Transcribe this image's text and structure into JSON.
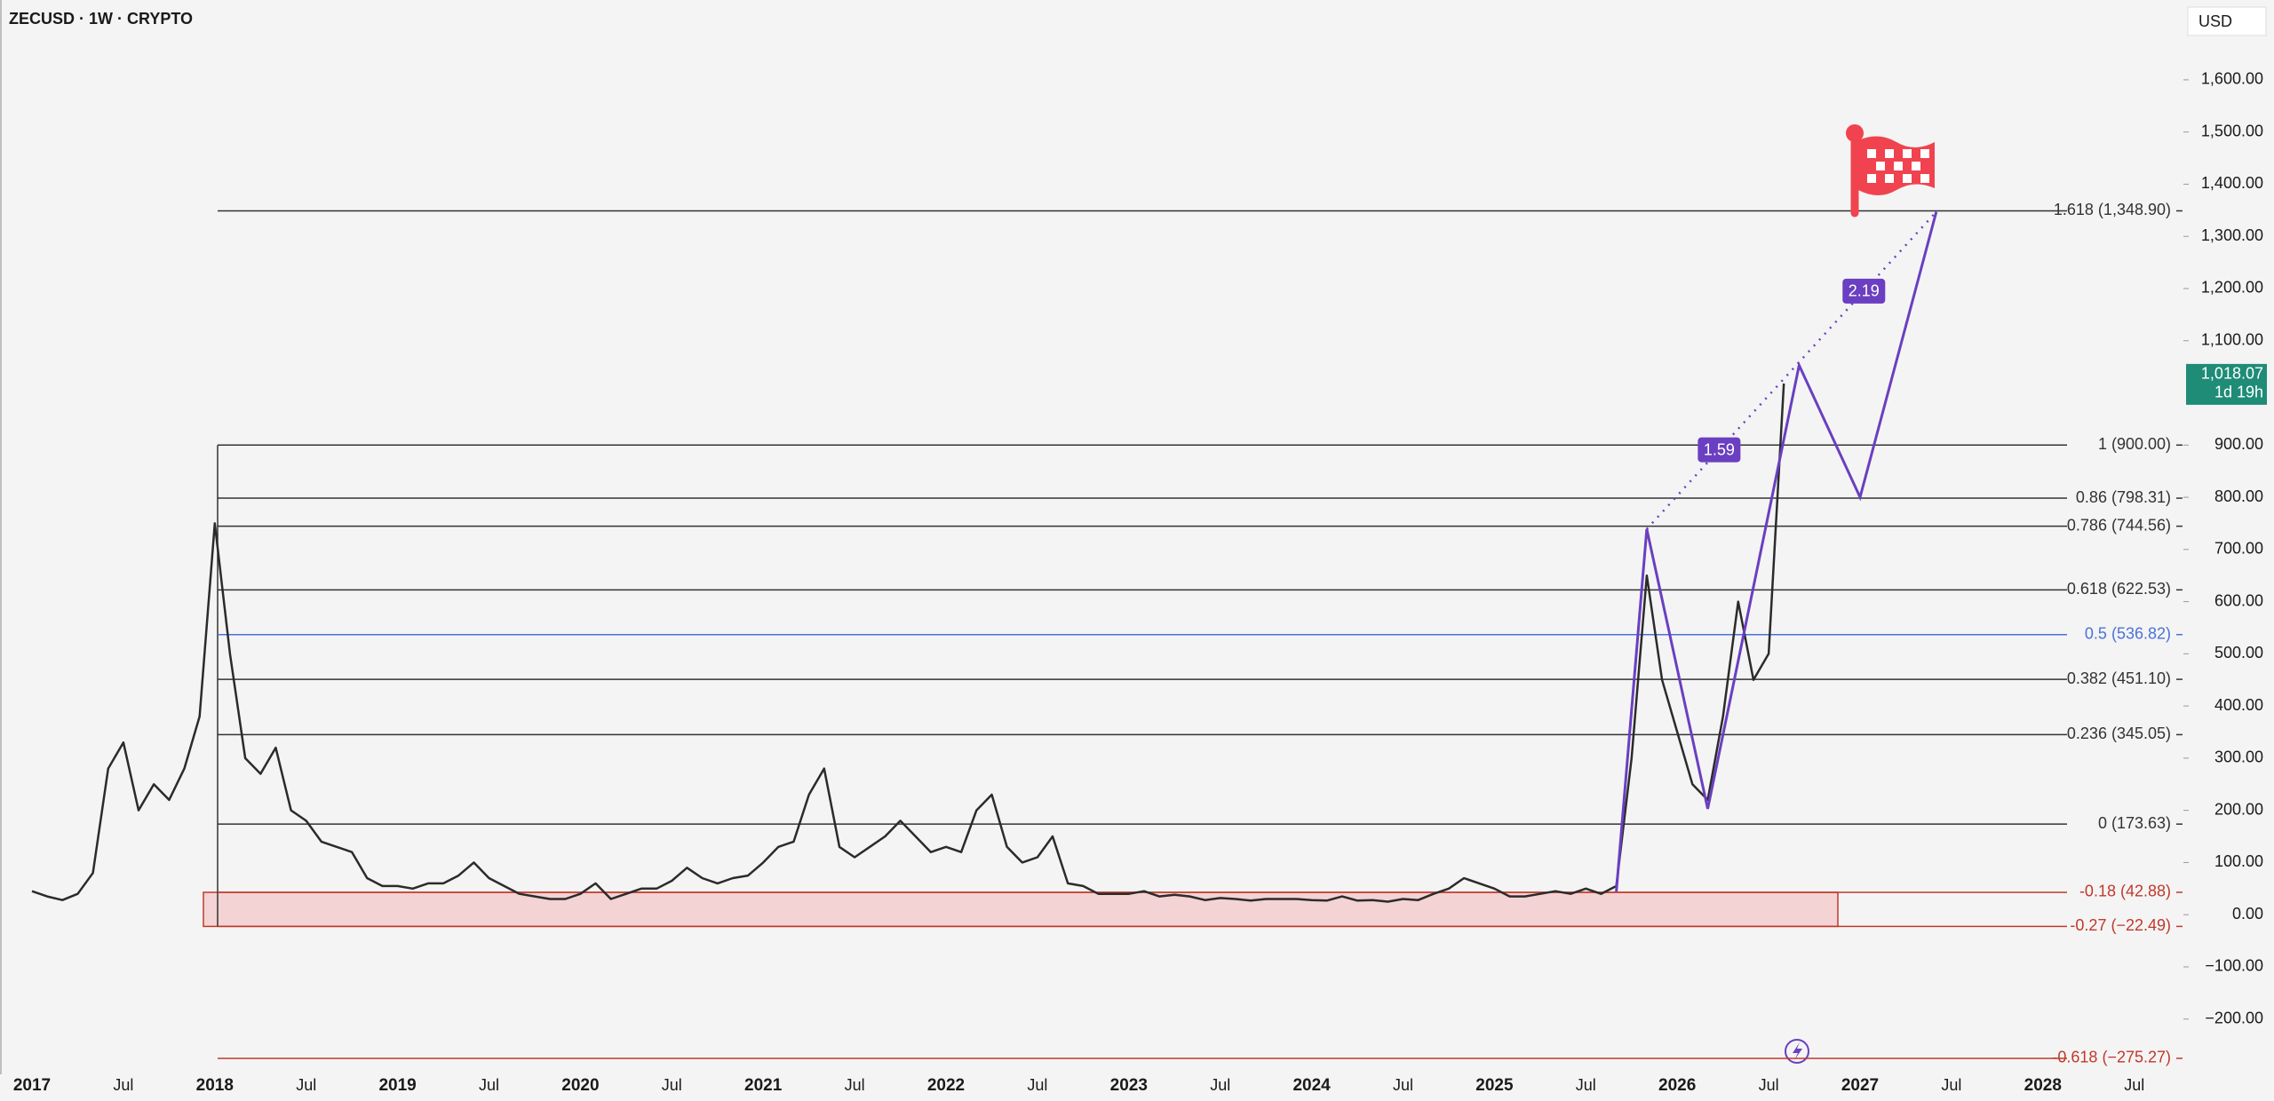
{
  "chart_data": {
    "type": "line",
    "title": "ZECUSD · 1W · CRYPTO",
    "currency": "USD",
    "x": [
      "2017-01",
      "2017-02",
      "2017-03",
      "2017-04",
      "2017-05",
      "2017-06",
      "2017-07",
      "2017-08",
      "2017-09",
      "2017-10",
      "2017-11",
      "2017-12",
      "2018-01",
      "2018-02",
      "2018-03",
      "2018-04",
      "2018-05",
      "2018-06",
      "2018-07",
      "2018-08",
      "2018-09",
      "2018-10",
      "2018-11",
      "2018-12",
      "2019-01",
      "2019-02",
      "2019-03",
      "2019-04",
      "2019-05",
      "2019-06",
      "2019-07",
      "2019-08",
      "2019-09",
      "2019-10",
      "2019-11",
      "2019-12",
      "2020-01",
      "2020-02",
      "2020-03",
      "2020-04",
      "2020-05",
      "2020-06",
      "2020-07",
      "2020-08",
      "2020-09",
      "2020-10",
      "2020-11",
      "2020-12",
      "2021-01",
      "2021-02",
      "2021-03",
      "2021-04",
      "2021-05",
      "2021-06",
      "2021-07",
      "2021-08",
      "2021-09",
      "2021-10",
      "2021-11",
      "2021-12",
      "2022-01",
      "2022-02",
      "2022-03",
      "2022-04",
      "2022-05",
      "2022-06",
      "2022-07",
      "2022-08",
      "2022-09",
      "2022-10",
      "2022-11",
      "2022-12",
      "2023-01",
      "2023-02",
      "2023-03",
      "2023-04",
      "2023-05",
      "2023-06",
      "2023-07",
      "2023-08",
      "2023-09",
      "2023-10",
      "2023-11",
      "2023-12",
      "2024-01",
      "2024-02",
      "2024-03",
      "2024-04",
      "2024-05",
      "2024-06",
      "2024-07",
      "2024-08",
      "2024-09",
      "2024-10",
      "2024-11",
      "2024-12",
      "2025-01",
      "2025-02",
      "2025-03",
      "2025-04",
      "2025-05",
      "2025-06",
      "2025-07",
      "2025-08",
      "2025-09",
      "2025-10",
      "2025-11",
      "2025-12",
      "2026-01",
      "2026-02",
      "2026-03",
      "2026-04",
      "2026-05",
      "2026-06",
      "2026-07",
      "2026-08"
    ],
    "series": [
      {
        "color": "#2b2b2b",
        "values": [
          45,
          35,
          28,
          40,
          80,
          280,
          330,
          200,
          250,
          220,
          280,
          380,
          750,
          500,
          300,
          270,
          320,
          200,
          180,
          140,
          130,
          120,
          70,
          55,
          55,
          50,
          60,
          60,
          75,
          100,
          70,
          55,
          40,
          35,
          30,
          30,
          40,
          60,
          30,
          40,
          50,
          50,
          65,
          90,
          70,
          60,
          70,
          75,
          100,
          130,
          140,
          230,
          280,
          130,
          110,
          130,
          150,
          180,
          150,
          120,
          130,
          120,
          200,
          230,
          130,
          100,
          110,
          150,
          60,
          55,
          40,
          40,
          40,
          45,
          35,
          38,
          35,
          28,
          32,
          30,
          27,
          30,
          30,
          30,
          28,
          27,
          35,
          27,
          28,
          25,
          30,
          28,
          40,
          50,
          70,
          60,
          50,
          35,
          35,
          40,
          45,
          40,
          50,
          40,
          55,
          300,
          650,
          450,
          350,
          250,
          220,
          380,
          600,
          450,
          500,
          1018.07
        ]
      }
    ],
    "ylim": [
      -306,
      1753
    ],
    "yticks": [
      {
        "value": 1600,
        "label": "1,600.00"
      },
      {
        "value": 1500,
        "label": "1,500.00"
      },
      {
        "value": 1400,
        "label": "1,400.00"
      },
      {
        "value": 1300,
        "label": "1,300.00"
      },
      {
        "value": 1200,
        "label": "1,200.00"
      },
      {
        "value": 1100,
        "label": "1,100.00"
      },
      {
        "value": 900,
        "label": "900.00"
      },
      {
        "value": 800,
        "label": "800.00"
      },
      {
        "value": 700,
        "label": "700.00"
      },
      {
        "value": 600,
        "label": "600.00"
      },
      {
        "value": 500,
        "label": "500.00"
      },
      {
        "value": 400,
        "label": "400.00"
      },
      {
        "value": 300,
        "label": "300.00"
      },
      {
        "value": 200,
        "label": "200.00"
      },
      {
        "value": 100,
        "label": "100.00"
      },
      {
        "value": 0,
        "label": "0.00"
      },
      {
        "value": -100,
        "label": "−100.00"
      },
      {
        "value": -200,
        "label": "−200.00"
      }
    ],
    "xticks": [
      {
        "value": "2017-01",
        "label": "2017"
      },
      {
        "value": "2017-07",
        "label": "Jul"
      },
      {
        "value": "2018-01",
        "label": "2018"
      },
      {
        "value": "2018-07",
        "label": "Jul"
      },
      {
        "value": "2019-01",
        "label": "2019"
      },
      {
        "value": "2019-07",
        "label": "Jul"
      },
      {
        "value": "2020-01",
        "label": "2020"
      },
      {
        "value": "2020-07",
        "label": "Jul"
      },
      {
        "value": "2021-01",
        "label": "2021"
      },
      {
        "value": "2021-07",
        "label": "Jul"
      },
      {
        "value": "2022-01",
        "label": "2022"
      },
      {
        "value": "2022-07",
        "label": "Jul"
      },
      {
        "value": "2023-01",
        "label": "2023"
      },
      {
        "value": "2023-07",
        "label": "Jul"
      },
      {
        "value": "2024-01",
        "label": "2024"
      },
      {
        "value": "2024-07",
        "label": "Jul"
      },
      {
        "value": "2025-01",
        "label": "2025"
      },
      {
        "value": "2025-07",
        "label": "Jul"
      },
      {
        "value": "2026-01",
        "label": "2026"
      },
      {
        "value": "2026-07",
        "label": "Jul"
      },
      {
        "value": "2027-01",
        "label": "2027"
      },
      {
        "value": "2027-07",
        "label": "Jul"
      },
      {
        "value": "2028-01",
        "label": "2028"
      },
      {
        "value": "2028-07",
        "label": "Jul"
      }
    ],
    "fib_levels": [
      {
        "label": "1.618 (1,348.90)",
        "value": 1348.9,
        "color": "#333333"
      },
      {
        "label": "1 (900.00)",
        "value": 900.0,
        "color": "#333333"
      },
      {
        "label": "0.86 (798.31)",
        "value": 798.31,
        "color": "#333333"
      },
      {
        "label": "0.786 (744.56)",
        "value": 744.56,
        "color": "#333333"
      },
      {
        "label": "0.618 (622.53)",
        "value": 622.53,
        "color": "#333333"
      },
      {
        "label": "0.5 (536.82)",
        "value": 536.82,
        "color": "#4a72d8"
      },
      {
        "label": "0.382 (451.10)",
        "value": 451.1,
        "color": "#333333"
      },
      {
        "label": "0.236 (345.05)",
        "value": 345.05,
        "color": "#333333"
      },
      {
        "label": "0 (173.63)",
        "value": 173.63,
        "color": "#333333"
      },
      {
        "label": "-0.18 (42.88)",
        "value": 42.88,
        "color": "#c0392b"
      },
      {
        "label": "-0.27 (−22.49)",
        "value": -22.49,
        "color": "#c0392b"
      },
      {
        "label": "-0.618 (−275.27)",
        "value": -275.27,
        "color": "#c0392b"
      }
    ],
    "projection": {
      "color": "#6a3fc1",
      "x": [
        "2025-09",
        "2025-11",
        "2026-03",
        "2026-09",
        "2027-01",
        "2027-06"
      ],
      "values": [
        44,
        739,
        203,
        1053,
        800,
        1347
      ],
      "ratios": [
        "1.59",
        "2.19"
      ]
    },
    "last_price": {
      "value": 1018.07,
      "label": "1,018.07",
      "countdown": "1d 19h",
      "color": "#1e8c76"
    }
  }
}
